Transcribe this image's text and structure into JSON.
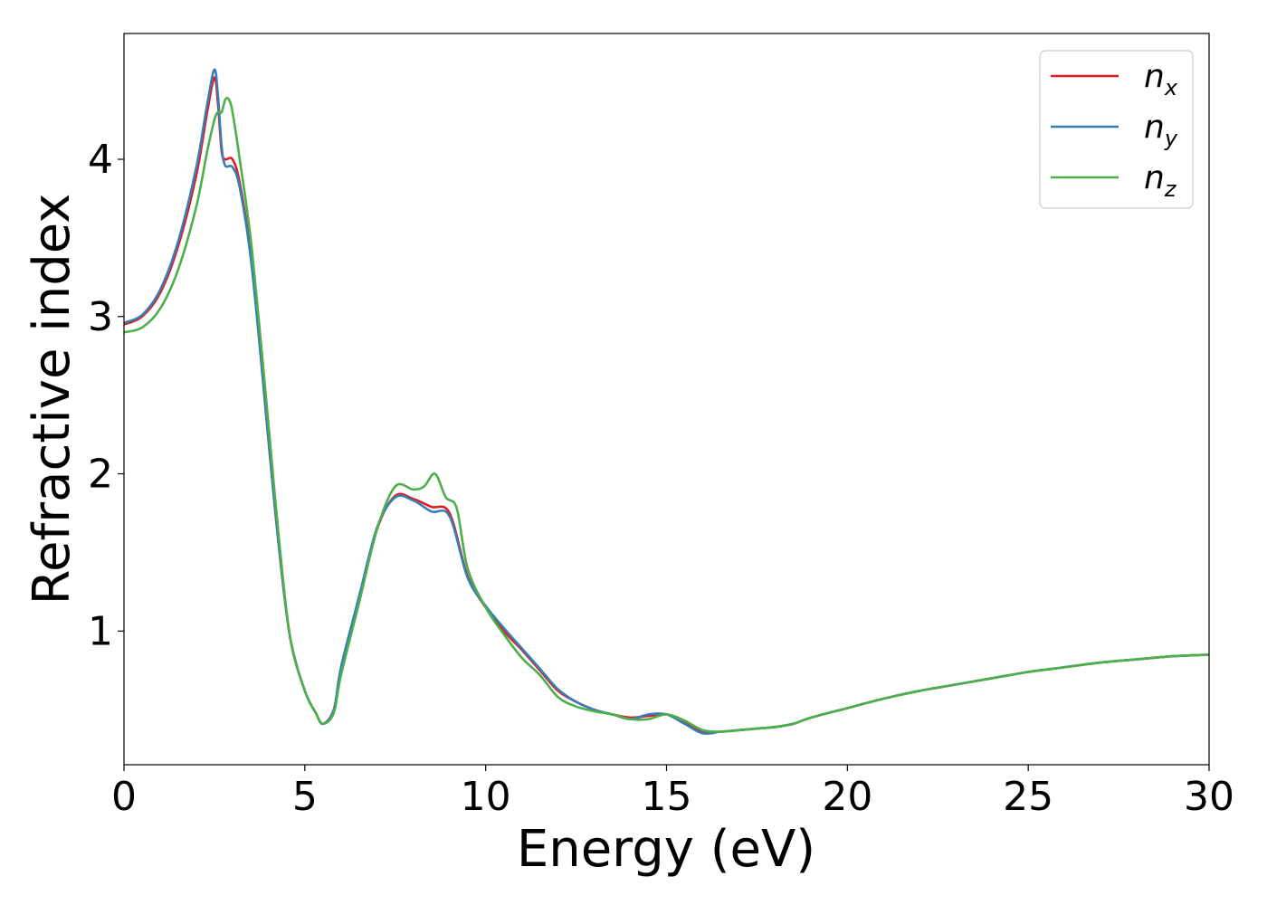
{
  "chart_data": {
    "type": "line",
    "title": "",
    "xlabel": "Energy (eV)",
    "ylabel": "Refractive index",
    "xlim": [
      0,
      30
    ],
    "ylim": [
      0.15,
      4.8
    ],
    "xticks": [
      0,
      5,
      10,
      15,
      20,
      25,
      30
    ],
    "yticks": [
      1,
      2,
      3,
      4
    ],
    "grid": false,
    "legend_position": "top-right",
    "series": [
      {
        "name": "n_x",
        "legend_base": "n",
        "legend_sub": "x",
        "color": "#e41a1c",
        "x": [
          0,
          0.5,
          1.0,
          1.5,
          2.0,
          2.3,
          2.5,
          2.6,
          2.7,
          2.8,
          3.0,
          3.2,
          3.5,
          3.8,
          4.0,
          4.3,
          4.6,
          5.0,
          5.3,
          5.5,
          5.8,
          6.0,
          6.5,
          7.0,
          7.5,
          8.0,
          8.5,
          9.0,
          9.5,
          10.0,
          10.5,
          11.0,
          11.5,
          12.0,
          12.5,
          13.0,
          13.5,
          14.0,
          14.5,
          15.0,
          15.5,
          16.0,
          16.5,
          17.0,
          17.5,
          18.0,
          18.5,
          19.0,
          20.0,
          21.0,
          22.0,
          23.0,
          24.0,
          25.0,
          26.0,
          27.0,
          28.0,
          29.0,
          30.0
        ],
        "y": [
          2.95,
          3.0,
          3.15,
          3.45,
          3.9,
          4.3,
          4.52,
          4.35,
          4.05,
          4.0,
          4.0,
          3.85,
          3.4,
          2.7,
          2.2,
          1.5,
          0.95,
          0.62,
          0.48,
          0.41,
          0.5,
          0.75,
          1.2,
          1.65,
          1.86,
          1.84,
          1.79,
          1.75,
          1.35,
          1.15,
          1.0,
          0.88,
          0.75,
          0.62,
          0.55,
          0.5,
          0.47,
          0.45,
          0.46,
          0.47,
          0.42,
          0.36,
          0.36,
          0.37,
          0.38,
          0.39,
          0.41,
          0.45,
          0.51,
          0.57,
          0.62,
          0.66,
          0.7,
          0.74,
          0.77,
          0.8,
          0.82,
          0.84,
          0.85
        ]
      },
      {
        "name": "n_y",
        "legend_base": "n",
        "legend_sub": "y",
        "color": "#377eb8",
        "x": [
          0,
          0.5,
          1.0,
          1.5,
          2.0,
          2.3,
          2.5,
          2.6,
          2.7,
          2.8,
          3.0,
          3.2,
          3.5,
          3.8,
          4.0,
          4.3,
          4.6,
          5.0,
          5.3,
          5.5,
          5.8,
          6.0,
          6.5,
          7.0,
          7.5,
          8.0,
          8.5,
          9.0,
          9.5,
          10.0,
          10.5,
          11.0,
          11.5,
          12.0,
          12.5,
          13.0,
          13.5,
          14.0,
          14.5,
          15.0,
          15.5,
          16.0,
          16.5,
          17.0,
          17.5,
          18.0,
          18.5,
          19.0,
          20.0,
          21.0,
          22.0,
          23.0,
          24.0,
          25.0,
          26.0,
          27.0,
          28.0,
          29.0,
          30.0
        ],
        "y": [
          2.96,
          3.01,
          3.17,
          3.48,
          3.95,
          4.35,
          4.57,
          4.4,
          4.08,
          3.96,
          3.95,
          3.82,
          3.38,
          2.7,
          2.2,
          1.5,
          0.95,
          0.62,
          0.48,
          0.41,
          0.5,
          0.77,
          1.22,
          1.66,
          1.85,
          1.83,
          1.76,
          1.73,
          1.34,
          1.16,
          1.02,
          0.89,
          0.76,
          0.63,
          0.55,
          0.5,
          0.47,
          0.44,
          0.47,
          0.47,
          0.41,
          0.35,
          0.36,
          0.37,
          0.38,
          0.39,
          0.41,
          0.45,
          0.51,
          0.57,
          0.62,
          0.66,
          0.7,
          0.74,
          0.77,
          0.8,
          0.82,
          0.84,
          0.85
        ]
      },
      {
        "name": "n_z",
        "legend_base": "n",
        "legend_sub": "z",
        "color": "#4daf4a",
        "x": [
          0,
          0.5,
          1.0,
          1.5,
          2.0,
          2.3,
          2.5,
          2.6,
          2.7,
          2.8,
          2.9,
          3.0,
          3.2,
          3.5,
          3.8,
          4.0,
          4.3,
          4.6,
          5.0,
          5.3,
          5.5,
          5.8,
          6.0,
          6.5,
          7.0,
          7.5,
          8.0,
          8.3,
          8.6,
          8.9,
          9.2,
          9.5,
          10.0,
          10.5,
          11.0,
          11.5,
          12.0,
          12.5,
          13.0,
          13.5,
          14.0,
          14.5,
          15.0,
          15.5,
          16.0,
          16.5,
          17.0,
          17.5,
          18.0,
          18.5,
          19.0,
          20.0,
          21.0,
          22.0,
          23.0,
          24.0,
          25.0,
          26.0,
          27.0,
          28.0,
          29.0,
          30.0
        ],
        "y": [
          2.9,
          2.93,
          3.05,
          3.3,
          3.7,
          4.05,
          4.25,
          4.3,
          4.3,
          4.38,
          4.38,
          4.3,
          4.0,
          3.5,
          2.8,
          2.3,
          1.55,
          0.95,
          0.62,
          0.48,
          0.41,
          0.48,
          0.72,
          1.18,
          1.65,
          1.92,
          1.9,
          1.92,
          2.0,
          1.85,
          1.78,
          1.4,
          1.15,
          0.98,
          0.83,
          0.72,
          0.58,
          0.52,
          0.49,
          0.47,
          0.44,
          0.44,
          0.47,
          0.43,
          0.37,
          0.36,
          0.37,
          0.38,
          0.39,
          0.41,
          0.45,
          0.51,
          0.57,
          0.62,
          0.66,
          0.7,
          0.74,
          0.77,
          0.8,
          0.82,
          0.84,
          0.85
        ]
      }
    ]
  }
}
